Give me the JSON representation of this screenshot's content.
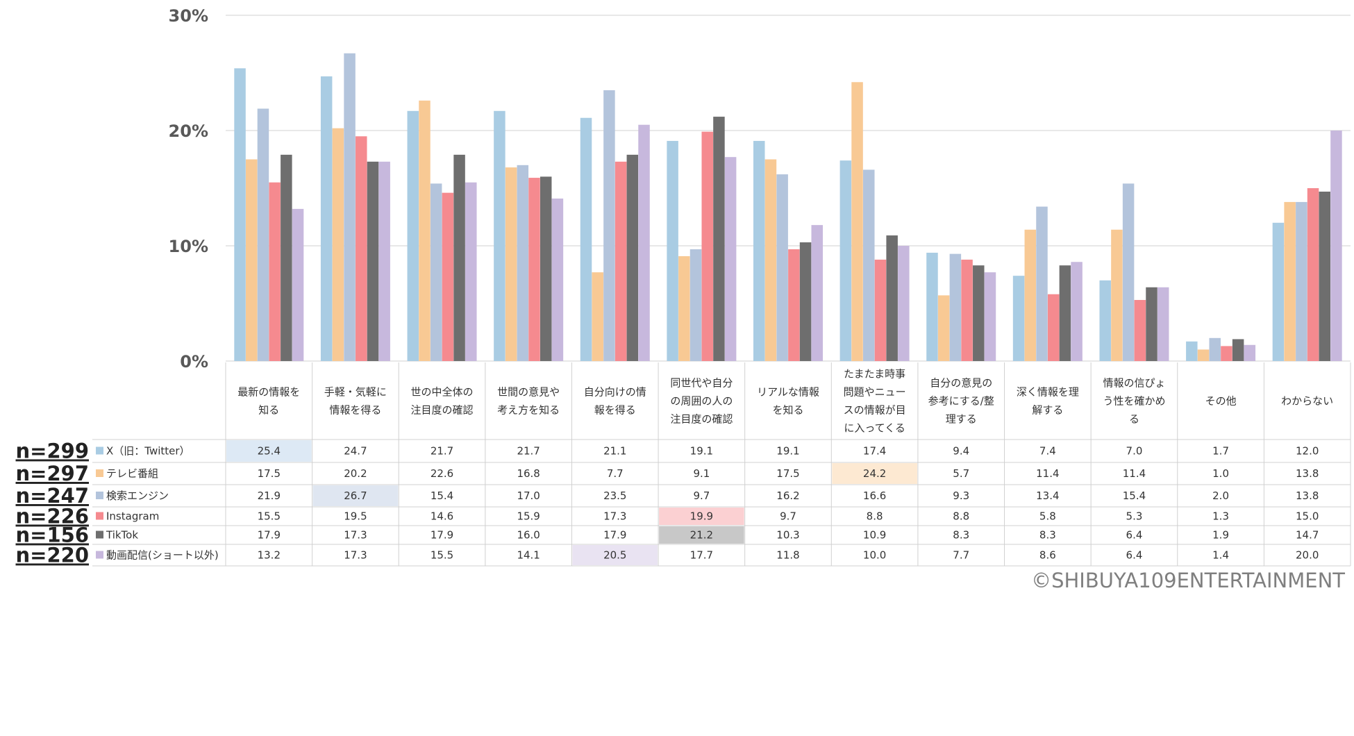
{
  "chart_data": {
    "type": "bar",
    "title": "",
    "xlabel": "",
    "ylabel": "",
    "ylim": [
      0,
      30
    ],
    "y_ticks": [
      "0%",
      "10%",
      "20%",
      "30%"
    ],
    "grid": true,
    "legend_position": "table-left",
    "categories": [
      [
        "最新の情報を",
        "知る"
      ],
      [
        "手軽・気軽に",
        "情報を得る"
      ],
      [
        "世の中全体の",
        "注目度の確認"
      ],
      [
        "世間の意見や",
        "考え方を知る"
      ],
      [
        "自分向けの情",
        "報を得る"
      ],
      [
        "同世代や自分",
        "の周囲の人の",
        "注目度の確認"
      ],
      [
        "リアルな情報",
        "を知る"
      ],
      [
        "たまたま時事",
        "問題やニュー",
        "スの情報が目",
        "に入ってくる"
      ],
      [
        "自分の意見の",
        "参考にする/整",
        "理する"
      ],
      [
        "深く情報を理",
        "解する"
      ],
      [
        "情報の信ぴょ",
        "う性を確かめ",
        "る"
      ],
      [
        "その他"
      ],
      [
        "わからない"
      ]
    ],
    "series": [
      {
        "name": "X（旧：Twitter）",
        "n": "n=299",
        "color": "#a9cce3",
        "values": [
          25.4,
          24.7,
          21.7,
          21.7,
          21.1,
          19.1,
          19.1,
          17.4,
          9.4,
          7.4,
          7.0,
          1.7,
          12.0
        ],
        "labels": [
          "25.4",
          "24.7",
          "21.7",
          "21.7",
          "21.1",
          "19.1",
          "19.1",
          "17.4",
          "9.4",
          "7.4",
          "7.0",
          "1.7",
          "12.0"
        ]
      },
      {
        "name": "テレビ番組",
        "n": "n=297",
        "color": "#f8c994",
        "values": [
          17.5,
          20.2,
          22.6,
          16.8,
          7.7,
          9.1,
          17.5,
          24.2,
          5.7,
          11.4,
          11.4,
          1.0,
          13.8
        ],
        "labels": [
          "17.5",
          "20.2",
          "22.6",
          "16.8",
          "7.7",
          "9.1",
          "17.5",
          "24.2",
          "5.7",
          "11.4",
          "11.4",
          "1.0",
          "13.8"
        ]
      },
      {
        "name": "検索エンジン",
        "n": "n=247",
        "color": "#b3c4dc",
        "values": [
          21.9,
          26.7,
          15.4,
          17.0,
          23.5,
          9.7,
          16.2,
          16.6,
          9.3,
          13.4,
          15.4,
          2.0,
          13.8
        ],
        "labels": [
          "21.9",
          "26.7",
          "15.4",
          "17.0",
          "23.5",
          "9.7",
          "16.2",
          "16.6",
          "9.3",
          "13.4",
          "15.4",
          "2.0",
          "13.8"
        ]
      },
      {
        "name": "Instagram",
        "n": "n=226",
        "color": "#f58a8f",
        "values": [
          15.5,
          19.5,
          14.6,
          15.9,
          17.3,
          19.9,
          9.7,
          8.8,
          8.8,
          5.8,
          5.3,
          1.3,
          15.0
        ],
        "labels": [
          "15.5",
          "19.5",
          "14.6",
          "15.9",
          "17.3",
          "19.9",
          "9.7",
          "8.8",
          "8.8",
          "5.8",
          "5.3",
          "1.3",
          "15.0"
        ]
      },
      {
        "name": "TikTok",
        "n": "n=156",
        "color": "#6e6e6e",
        "values": [
          17.9,
          17.3,
          17.9,
          16.0,
          17.9,
          21.2,
          10.3,
          10.9,
          8.3,
          8.3,
          6.4,
          1.9,
          14.7
        ],
        "labels": [
          "17.9",
          "17.3",
          "17.9",
          "16.0",
          "17.9",
          "21.2",
          "10.3",
          "10.9",
          "8.3",
          "8.3",
          "6.4",
          "1.9",
          "14.7"
        ]
      },
      {
        "name": "動画配信(ショート以外)",
        "n": "n=220",
        "color": "#c7b8dd",
        "values": [
          13.2,
          17.3,
          15.5,
          14.1,
          20.5,
          17.7,
          11.8,
          10.0,
          7.7,
          8.6,
          6.4,
          1.4,
          20.0
        ],
        "labels": [
          "13.2",
          "17.3",
          "15.5",
          "14.1",
          "20.5",
          "17.7",
          "11.8",
          "10.0",
          "7.7",
          "8.6",
          "6.4",
          "1.4",
          "20.0"
        ]
      }
    ],
    "highlight_cells": [
      {
        "series": 0,
        "category": 0,
        "color": "#dde9f5"
      },
      {
        "series": 1,
        "category": 7,
        "color": "#fde9d2"
      },
      {
        "series": 2,
        "category": 1,
        "color": "#dfe6f1"
      },
      {
        "series": 3,
        "category": 5,
        "color": "#fbd0d2"
      },
      {
        "series": 4,
        "category": 5,
        "color": "#c8c8c8"
      },
      {
        "series": 5,
        "category": 4,
        "color": "#e9e3f2"
      }
    ],
    "copyright": "©SHIBUYA109ENTERTAINMENT"
  }
}
